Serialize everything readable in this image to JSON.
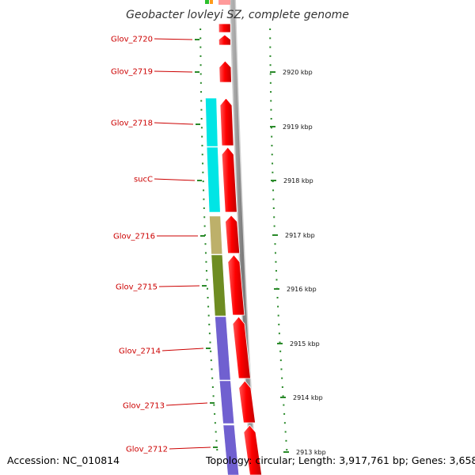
{
  "title": "Geobacter lovleyi SZ, complete genome",
  "accession": "Accession: NC_010814",
  "topology": "Topology: circular; Length: 3,917,761 bp; Genes: 3,658",
  "colors": {
    "cds": "#ff0000",
    "backbone": "#808080",
    "tick": "#2a8a2a",
    "label_line": "#cc0000",
    "glov_2718": "#00e5e5",
    "sucC": "#00e5e5",
    "glov_2716": "#bdb06a",
    "glov_2715": "#6e8c22",
    "glov_2714": "#7060d0",
    "glov_2713": "#7060d0",
    "glov_2712": "#7060d0"
  },
  "genes": [
    "Glov_2720",
    "Glov_2719",
    "Glov_2718",
    "sucC",
    "Glov_2716",
    "Glov_2715",
    "Glov_2714",
    "Glov_2713",
    "Glov_2712"
  ],
  "kbp_ticks": [
    "2920 kbp",
    "2919 kbp",
    "2918 kbp",
    "2917 kbp",
    "2916 kbp",
    "2915 kbp",
    "2914 kbp",
    "2913 kbp"
  ]
}
